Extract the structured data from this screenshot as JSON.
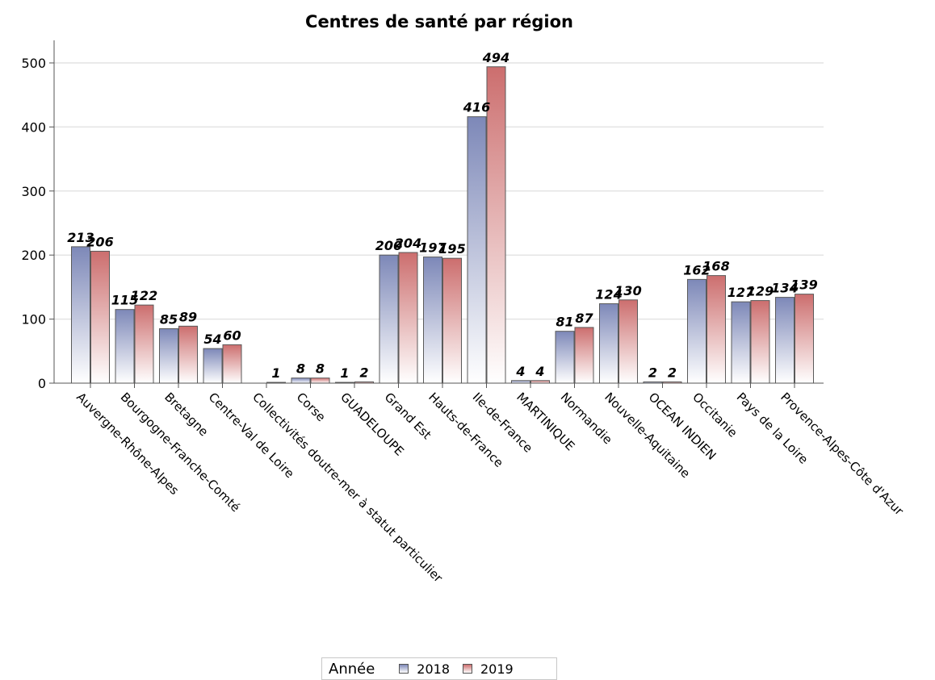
{
  "chart_data": {
    "type": "bar",
    "title": "Centres de santé par région",
    "xlabel": "",
    "ylabel": "",
    "ylim": [
      0,
      525
    ],
    "yticks": [
      0,
      100,
      200,
      300,
      400,
      500
    ],
    "grid": true,
    "legend_position": "bottom",
    "legend_title": "Année",
    "categories": [
      "Auvergne-Rhône-Alpes",
      "Bourgogne-Franche-Comté",
      "Bretagne",
      "Centre-Val de Loire",
      "Collectivités d\u001foutre-mer à statut particulier",
      "Corse",
      "GUADELOUPE",
      "Grand Est",
      "Hauts-de-France",
      "Ile-de-France",
      "MARTINIQUE",
      "Normandie",
      "Nouvelle-Aquitaine",
      "OCEAN INDIEN",
      "Occitanie",
      "Pays de la Loire",
      "Provence-Alpes-Côte d'Azur"
    ],
    "series": [
      {
        "name": "2018",
        "color": "#7d88b8",
        "values": [
          213,
          115,
          85,
          54,
          null,
          8,
          1,
          200,
          197,
          416,
          4,
          81,
          124,
          2,
          162,
          127,
          134
        ]
      },
      {
        "name": "2019",
        "color": "#cc6e6e",
        "values": [
          206,
          122,
          89,
          60,
          1,
          8,
          2,
          204,
          195,
          494,
          4,
          87,
          130,
          2,
          168,
          129,
          139
        ]
      }
    ]
  }
}
